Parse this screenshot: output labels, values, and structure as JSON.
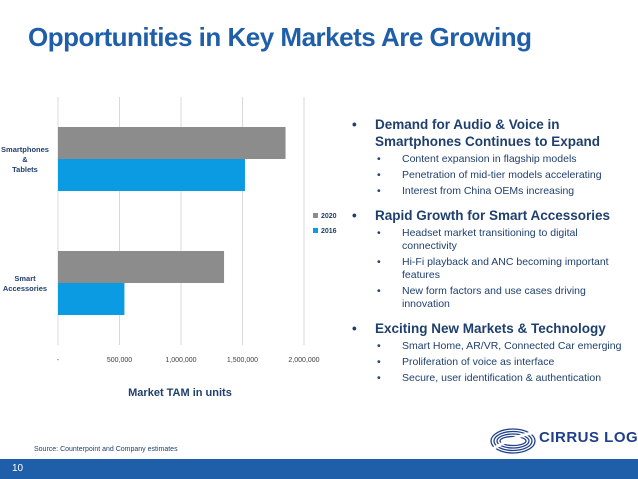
{
  "title": "Opportunities in Key Markets Are Growing",
  "chart_data": {
    "type": "bar",
    "orientation": "horizontal",
    "categories": [
      "Smartphones & Tablets",
      "Smart Accessories"
    ],
    "category_labels": [
      [
        "Smartphones",
        "&",
        "Tablets"
      ],
      [
        "Smart",
        "Accessories"
      ]
    ],
    "series": [
      {
        "name": "2020",
        "values": [
          1850000,
          1350000
        ],
        "color": "#8c8c8c"
      },
      {
        "name": "2016",
        "values": [
          1520000,
          540000
        ],
        "color": "#0b9be3"
      }
    ],
    "xlabel": "Market TAM in units",
    "xlim": [
      0,
      2000000
    ],
    "xticks": [
      0,
      500000,
      1000000,
      1500000,
      2000000
    ],
    "xtick_labels": [
      "-",
      "500,000",
      "1,000,000",
      "1,500,000",
      "2,000,000"
    ],
    "grid": true,
    "legend": "right"
  },
  "bullets": [
    {
      "text": "Demand for Audio & Voice in Smartphones Continues to Expand",
      "sub": [
        "Content expansion in flagship models",
        "Penetration of mid-tier models accelerating",
        "Interest from China OEMs increasing"
      ]
    },
    {
      "text": "Rapid Growth for Smart Accessories",
      "sub": [
        "Headset market transitioning to digital connectivity",
        "Hi-Fi playback and ANC becoming important features",
        "New form factors and use cases driving innovation"
      ]
    },
    {
      "text": "Exciting New Markets & Technology",
      "sub": [
        "Smart Home, AR/VR, Connected Car emerging",
        "Proliferation of voice as interface",
        "Secure, user identification & authentication"
      ]
    }
  ],
  "source": "Source: Counterpoint and Company estimates",
  "page_number": "10",
  "logo": {
    "text": "CIRRUS LOGIC",
    "trademark": "®",
    "icon": "cirrus-logic-swoosh-icon"
  }
}
